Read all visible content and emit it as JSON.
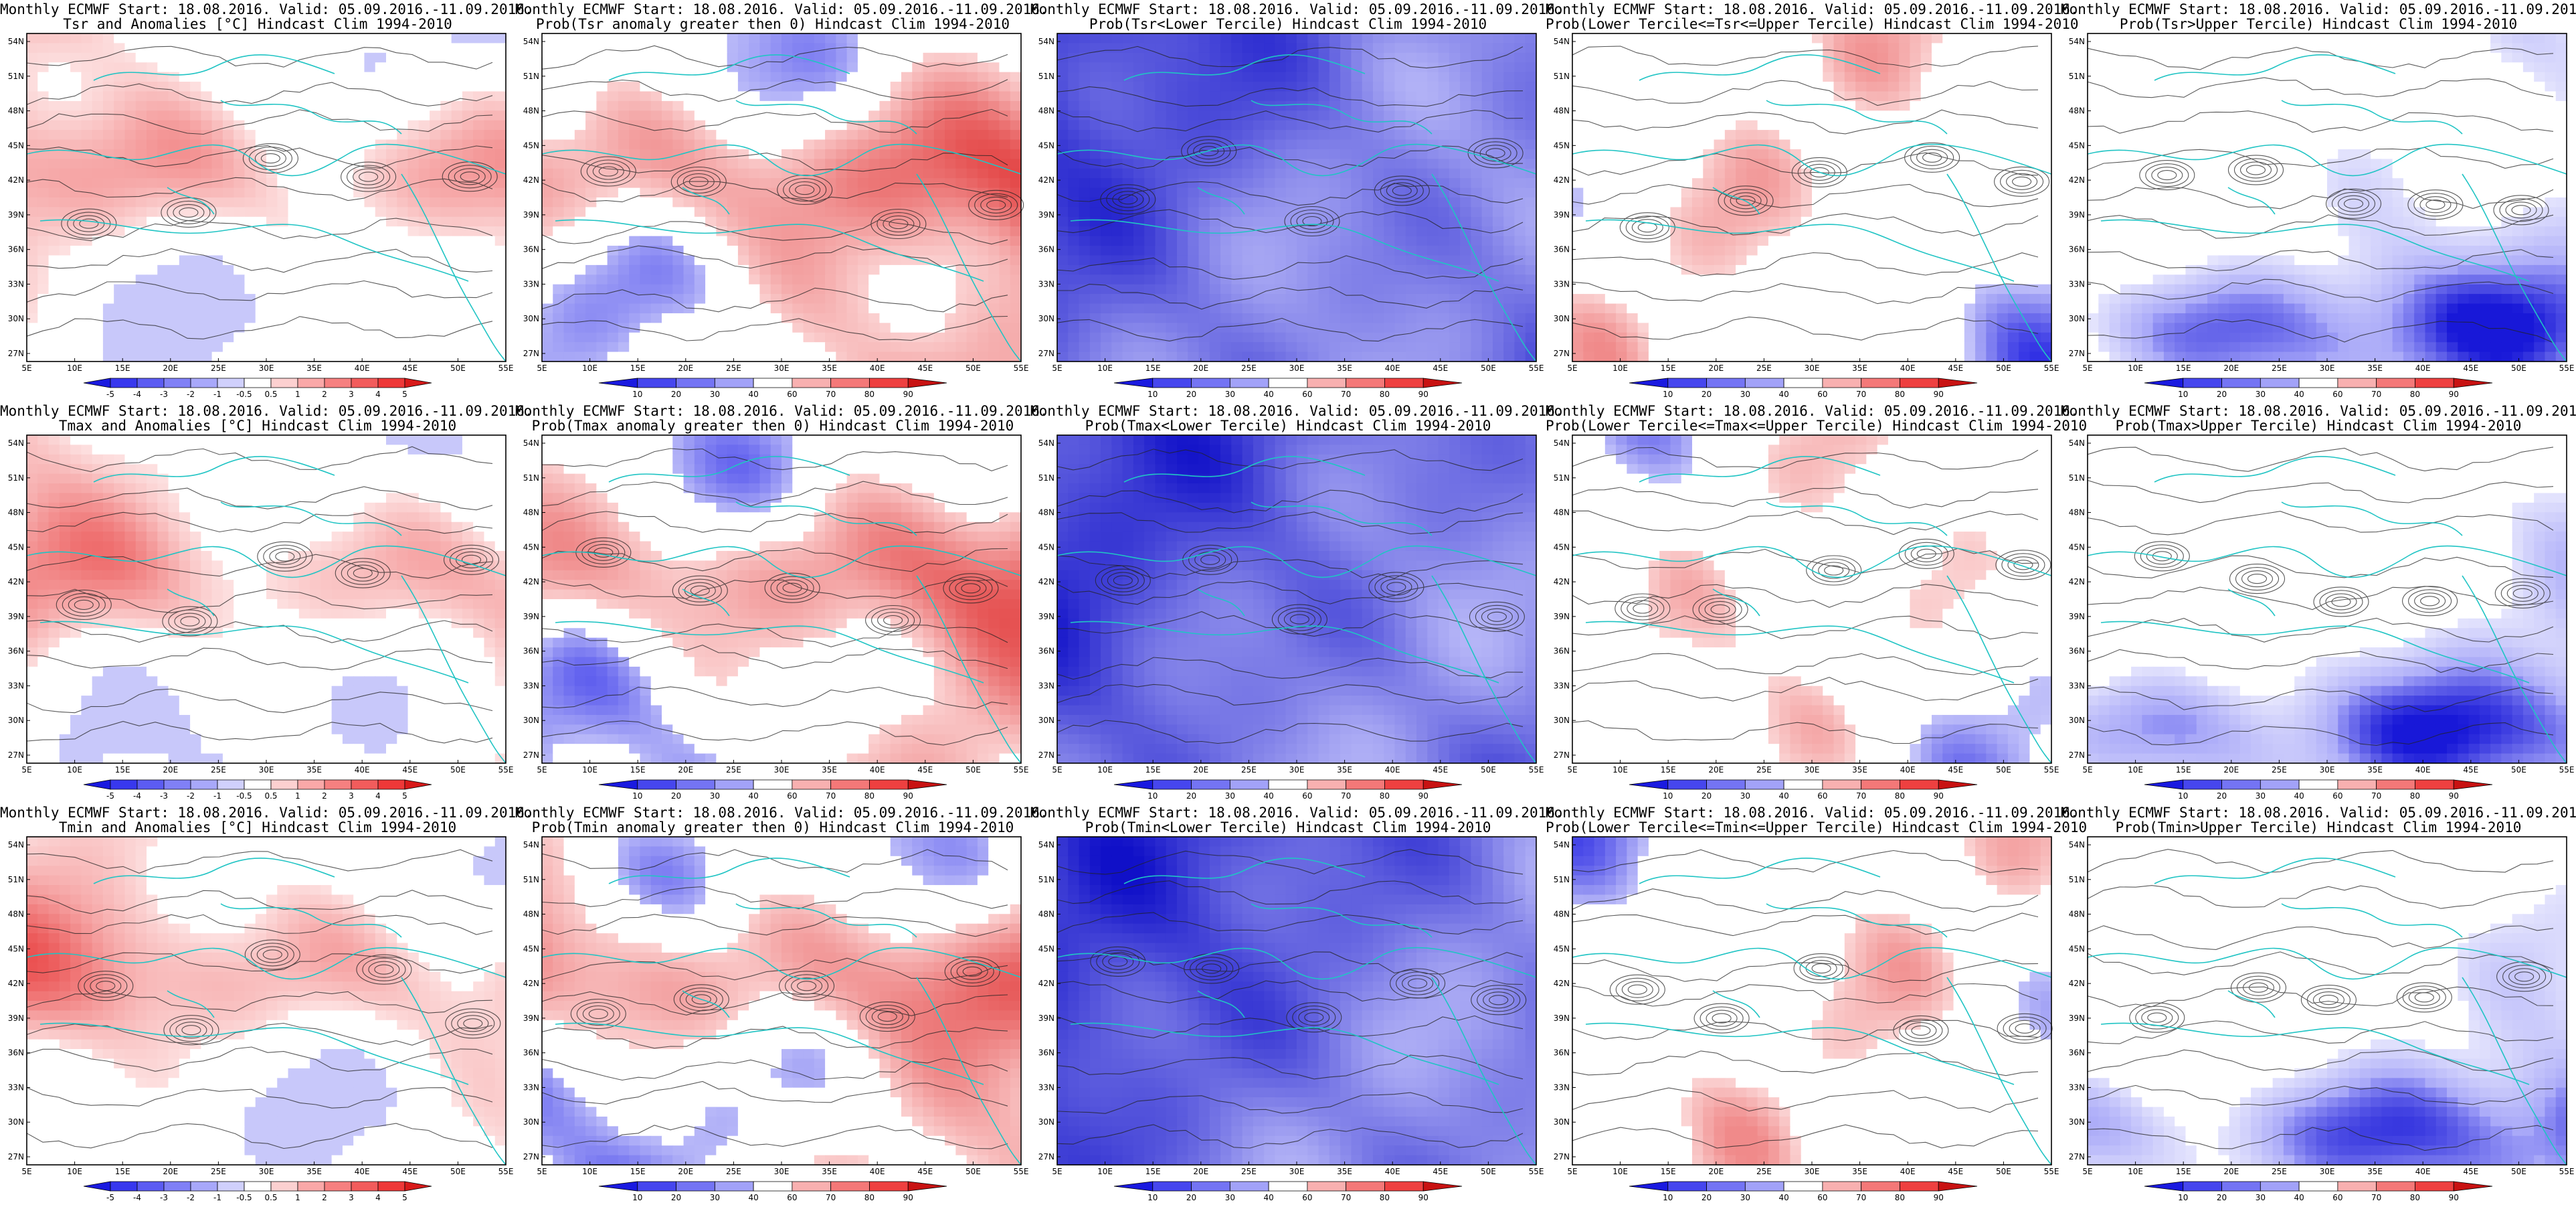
{
  "header_line": "Monthly ECMWF Start: 18.08.2016. Valid: 05.09.2016.-11.09.2016.",
  "lat_labels": [
    "54N",
    "51N",
    "48N",
    "45N",
    "42N",
    "39N",
    "36N",
    "33N",
    "30N",
    "27N"
  ],
  "lon_labels": [
    "5E",
    "10E",
    "15E",
    "20E",
    "25E",
    "30E",
    "35E",
    "40E",
    "45E",
    "50E",
    "55E"
  ],
  "colors": {
    "land_outline": "#20c4c4",
    "contour": "#222222",
    "frame": "#000000"
  },
  "colorbars": {
    "anomaly": {
      "labels": [
        "-5",
        "-4",
        "-3",
        "-2",
        "-1",
        "-0.5",
        "0.5",
        "1",
        "2",
        "3",
        "4",
        "5"
      ],
      "colors": [
        "#1a1ae0",
        "#3838ee",
        "#5c5cf2",
        "#8080f6",
        "#a8a8fa",
        "#d0d0fc",
        "#ffffff",
        "#fcd0d0",
        "#faa8a8",
        "#f68080",
        "#f25c5c",
        "#ee3838",
        "#d81a1a"
      ]
    },
    "probability": {
      "labels": [
        "10",
        "20",
        "30",
        "40",
        "60",
        "70",
        "80",
        "90"
      ],
      "colors": [
        "#1a1ae0",
        "#4646ee",
        "#7474f4",
        "#a2a2f8",
        "#ffffff",
        "#f8b0b0",
        "#f47878",
        "#ee4040",
        "#c81212"
      ]
    }
  },
  "panels": [
    {
      "row": 0,
      "col": 0,
      "variable": "Tsr",
      "title2": "Tsr and Anomalies [°C] Hindcast Clim 1994-2010",
      "scale": "anomaly",
      "tone": "red-anom",
      "intensity": 0.55
    },
    {
      "row": 0,
      "col": 1,
      "variable": "Tsr",
      "title2": "Prob(Tsr anomaly greater then 0) Hindcast Clim 1994-2010",
      "scale": "probability",
      "tone": "red-prob",
      "intensity": 0.6
    },
    {
      "row": 0,
      "col": 2,
      "variable": "Tsr",
      "title2": "Prob(Tsr<Lower Tercile) Hindcast Clim 1994-2010",
      "scale": "probability",
      "tone": "blue-strong",
      "intensity": 0.85
    },
    {
      "row": 0,
      "col": 3,
      "variable": "Tsr",
      "title2": "Prob(Lower Tercile<=Tsr<=Upper Tercile) Hindcast Clim 1994-2010",
      "scale": "probability",
      "tone": "blue-mixed",
      "intensity": 0.5
    },
    {
      "row": 0,
      "col": 4,
      "variable": "Tsr",
      "title2": "Prob(Tsr>Upper Tercile) Hindcast Clim 1994-2010",
      "scale": "probability",
      "tone": "blue-light",
      "intensity": 0.6
    },
    {
      "row": 1,
      "col": 0,
      "variable": "Tmax",
      "title2": "Tmax and Anomalies [°C] Hindcast Clim 1994-2010",
      "scale": "anomaly",
      "tone": "red-anom",
      "intensity": 0.5
    },
    {
      "row": 1,
      "col": 1,
      "variable": "Tmax",
      "title2": "Prob(Tmax anomaly greater then 0) Hindcast Clim 1994-2010",
      "scale": "probability",
      "tone": "red-prob",
      "intensity": 0.55
    },
    {
      "row": 1,
      "col": 2,
      "variable": "Tmax",
      "title2": "Prob(Tmax<Lower Tercile) Hindcast Clim 1994-2010",
      "scale": "probability",
      "tone": "blue-strong",
      "intensity": 0.85
    },
    {
      "row": 1,
      "col": 3,
      "variable": "Tmax",
      "title2": "Prob(Lower Tercile<=Tmax<=Upper Tercile) Hindcast Clim 1994-2010",
      "scale": "probability",
      "tone": "blue-mixed",
      "intensity": 0.45
    },
    {
      "row": 1,
      "col": 4,
      "variable": "Tmax",
      "title2": "Prob(Tmax>Upper Tercile) Hindcast Clim 1994-2010",
      "scale": "probability",
      "tone": "blue-light",
      "intensity": 0.55
    },
    {
      "row": 2,
      "col": 0,
      "variable": "Tmin",
      "title2": "Tmin and Anomalies [°C] Hindcast Clim 1994-2010",
      "scale": "anomaly",
      "tone": "red-anom",
      "intensity": 0.6
    },
    {
      "row": 2,
      "col": 1,
      "variable": "Tmin",
      "title2": "Prob(Tmin anomaly greater then 0) Hindcast Clim 1994-2010",
      "scale": "probability",
      "tone": "red-prob",
      "intensity": 0.65
    },
    {
      "row": 2,
      "col": 2,
      "variable": "Tmin",
      "title2": "Prob(Tmin<Lower Tercile) Hindcast Clim 1994-2010",
      "scale": "probability",
      "tone": "blue-strong",
      "intensity": 0.8
    },
    {
      "row": 2,
      "col": 3,
      "variable": "Tmin",
      "title2": "Prob(Lower Tercile<=Tmin<=Upper Tercile) Hindcast Clim 1994-2010",
      "scale": "probability",
      "tone": "blue-mixed",
      "intensity": 0.5
    },
    {
      "row": 2,
      "col": 4,
      "variable": "Tmin",
      "title2": "Prob(Tmin>Upper Tercile) Hindcast Clim 1994-2010",
      "scale": "probability",
      "tone": "blue-light",
      "intensity": 0.55
    }
  ]
}
